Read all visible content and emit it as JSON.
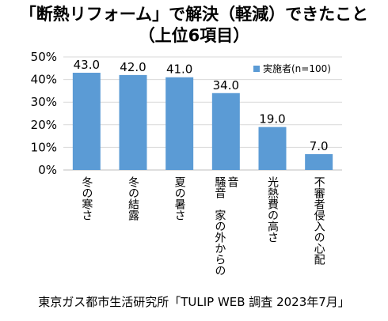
{
  "title_line1": "「断熱リフォーム」で解決（軽減）できたこと",
  "title_line2": "（上位6項目）",
  "source": "東京ガス都市生活研究所「TULIP WEB 調査 2023年7月」",
  "chart_data": {
    "type": "bar",
    "categories": [
      "冬の寒さ",
      "冬の結露",
      "夏の暑さ",
      "騒音　家の外からの音",
      "光熱費の高さ",
      "不審者侵入の心配"
    ],
    "category_lines": [
      [
        "冬の寒さ"
      ],
      [
        "冬の結露"
      ],
      [
        "夏の暑さ"
      ],
      [
        "騒音　家の外からの",
        "音"
      ],
      [
        "光熱費の高さ"
      ],
      [
        "不審者侵入の心配"
      ]
    ],
    "series": [
      {
        "name": "実施者(n=100)",
        "values": [
          43.0,
          42.0,
          41.0,
          34.0,
          19.0,
          7.0
        ]
      }
    ],
    "data_labels": [
      "43.0",
      "42.0",
      "41.0",
      "34.0",
      "19.0",
      "7.0"
    ],
    "ylim": [
      0,
      50
    ],
    "yticks": [
      "0%",
      "10%",
      "20%",
      "30%",
      "40%",
      "50%"
    ],
    "legend_position": "top-right",
    "grid": true,
    "bar_color": "#5b9bd5"
  }
}
